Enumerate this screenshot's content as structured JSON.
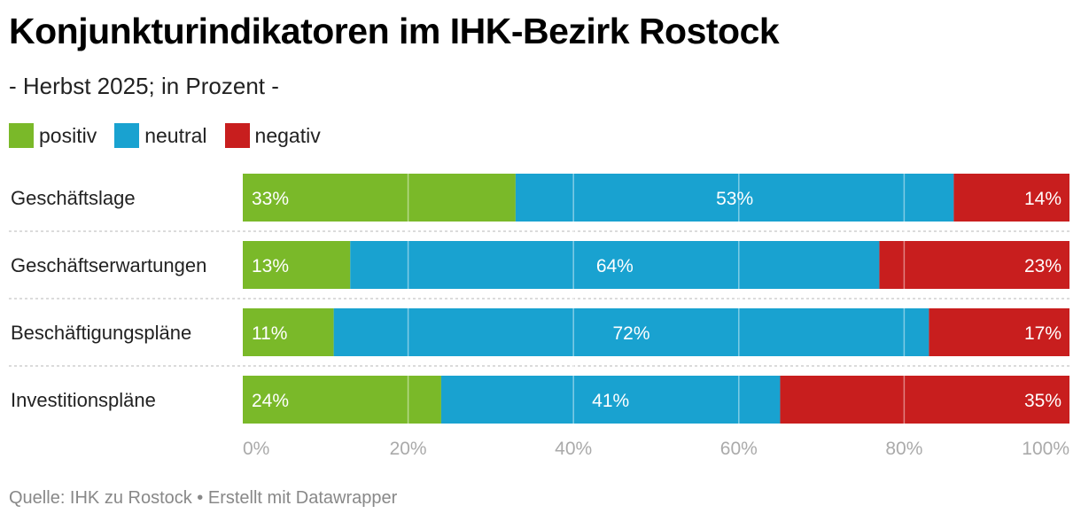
{
  "title": "Konjunkturindikatoren im IHK-Bezirk Rostock",
  "subtitle": "- Herbst 2025; in Prozent -",
  "legend": [
    {
      "label": "positiv",
      "color": "#7ab929"
    },
    {
      "label": "neutral",
      "color": "#19a2d0"
    },
    {
      "label": "negativ",
      "color": "#c81e1e"
    }
  ],
  "footer": "Quelle: IHK zu Rostock • Erstellt mit Datawrapper",
  "chart_data": {
    "type": "bar",
    "orientation": "horizontal",
    "stacked": true,
    "categories": [
      "Geschäftslage",
      "Geschäftserwartungen",
      "Beschäftigungspläne",
      "Investitionspläne"
    ],
    "series": [
      {
        "name": "positiv",
        "color": "#7ab929",
        "values": [
          33,
          13,
          11,
          24
        ],
        "labels": [
          "33%",
          "13%",
          "11%",
          "24%"
        ]
      },
      {
        "name": "neutral",
        "color": "#19a2d0",
        "values": [
          53,
          64,
          72,
          41
        ],
        "labels": [
          "53%",
          "64%",
          "72%",
          "41%"
        ]
      },
      {
        "name": "negativ",
        "color": "#c81e1e",
        "values": [
          14,
          23,
          17,
          35
        ],
        "labels": [
          "14%",
          "23%",
          "17%",
          "35%"
        ]
      }
    ],
    "xlim": [
      0,
      100
    ],
    "xticks": [
      0,
      20,
      40,
      60,
      80,
      100
    ],
    "xtick_labels": [
      "0%",
      "20%",
      "40%",
      "60%",
      "80%",
      "100%"
    ],
    "grid": true,
    "legend_position": "top-left"
  }
}
